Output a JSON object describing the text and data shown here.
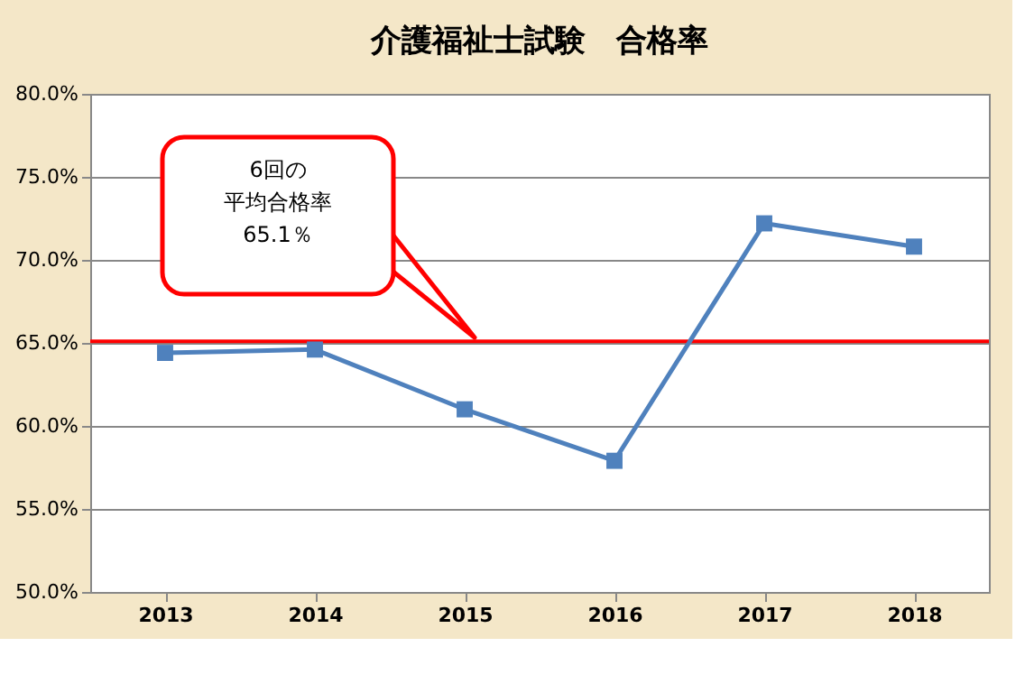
{
  "chart_data": {
    "type": "line",
    "title": "介護福祉士試験　合格率",
    "categories": [
      "2013",
      "2014",
      "2015",
      "2016",
      "2017",
      "2018"
    ],
    "series": [
      {
        "color": "#4f81bd",
        "values": [
          64.4,
          64.6,
          61.0,
          57.9,
          72.2,
          70.8
        ]
      }
    ],
    "ylim": [
      50,
      80
    ],
    "yticks": [
      {
        "value": 50,
        "label": "50.0%"
      },
      {
        "value": 55,
        "label": "55.0%"
      },
      {
        "value": 60,
        "label": "60.0%"
      },
      {
        "value": 65,
        "label": "65.0%"
      },
      {
        "value": 70,
        "label": "70.0%"
      },
      {
        "value": 75,
        "label": "75.0%"
      },
      {
        "value": 80,
        "label": "80.0%"
      }
    ],
    "ref_lines": [
      {
        "axis": "y",
        "value": 65.1,
        "color": "#ff0000"
      }
    ],
    "annotations": [
      "6回の",
      "平均合格率",
      "65.1％"
    ],
    "grid": "y",
    "marker": "square",
    "line_style": "solid"
  }
}
